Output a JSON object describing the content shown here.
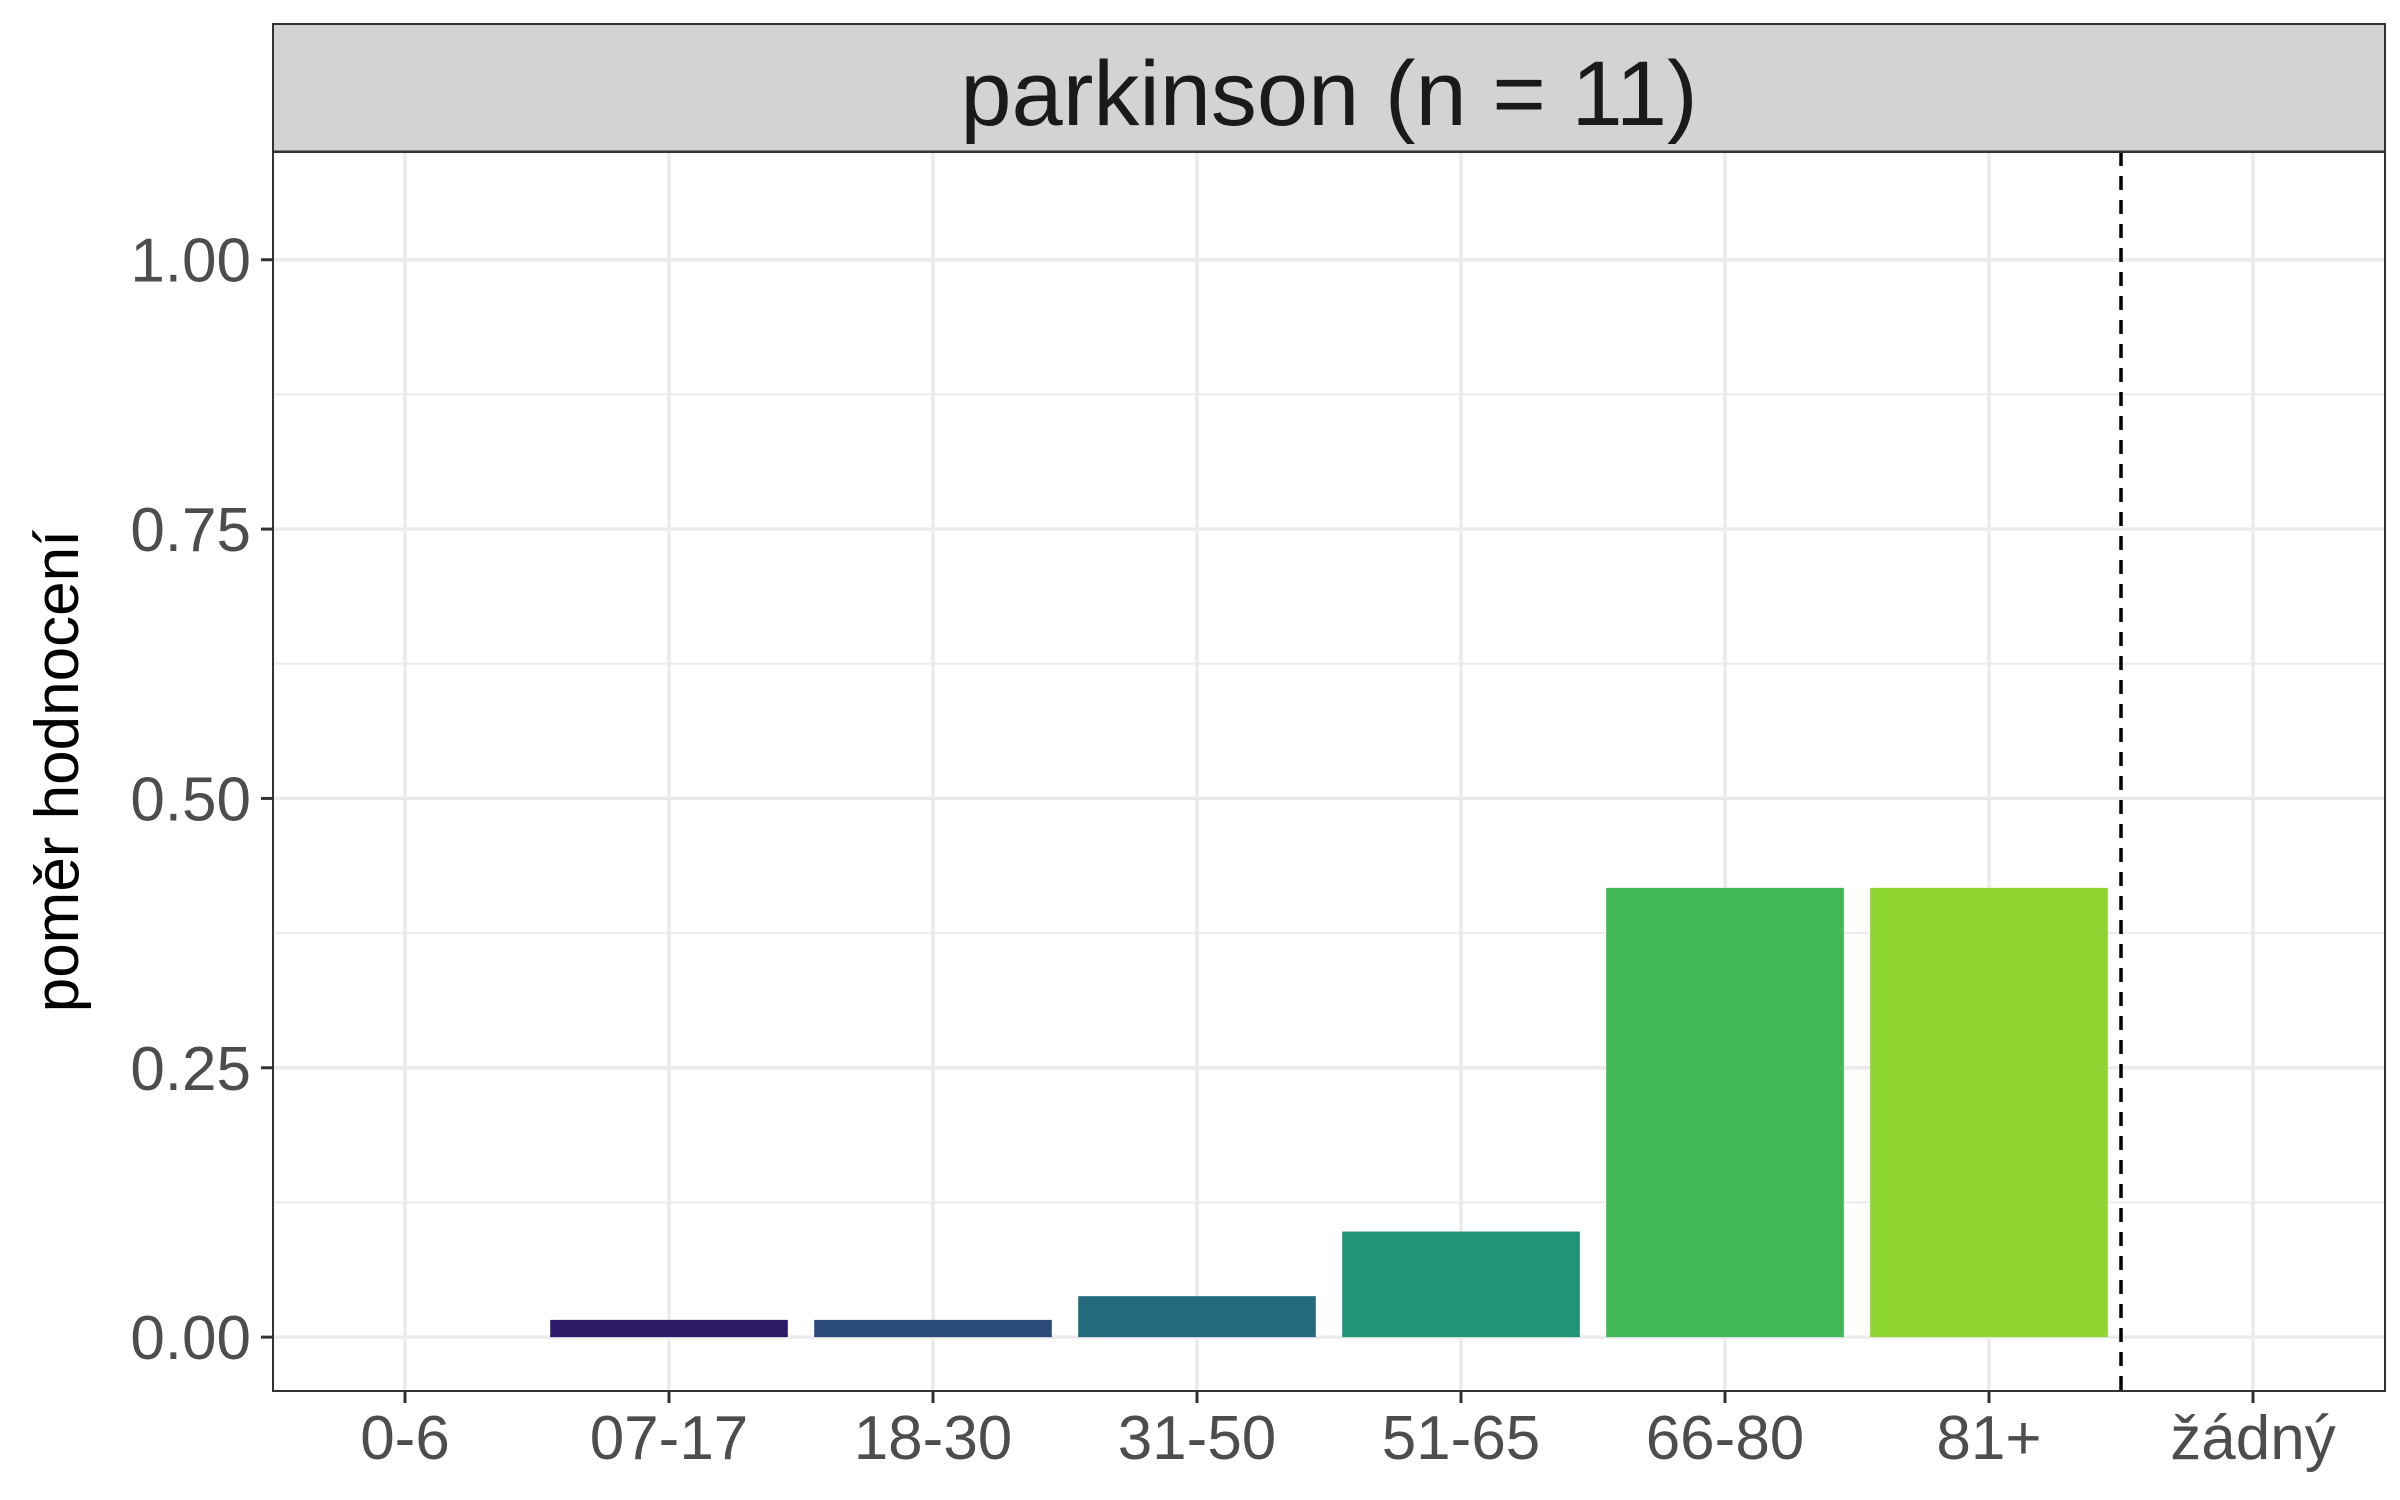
{
  "chart_data": {
    "type": "bar",
    "panel_title": "parkinson (n = 11)",
    "xlabel": "",
    "ylabel": "poměr hodnocení",
    "categories": [
      "0-6",
      "07-17",
      "18-30",
      "31-50",
      "51-65",
      "66-80",
      "81+",
      "žádný"
    ],
    "values": [
      0,
      0.016,
      0.016,
      0.038,
      0.098,
      0.417,
      0.417,
      0
    ],
    "colors": [
      "#440154",
      "#2D1A67",
      "#2A4A7B",
      "#236A7E",
      "#1F9476",
      "#40B858",
      "#8FD531",
      "#FDE725"
    ],
    "ylim": [
      -0.05,
      1.1
    ],
    "yticks": [
      0,
      0.25,
      0.5,
      0.75,
      1.0
    ],
    "ytick_labels": [
      "0.00",
      "0.25",
      "0.50",
      "0.75",
      "1.00"
    ],
    "vline_after_category": "81+",
    "vline_style": "dashed",
    "grid": true,
    "legend": "none"
  }
}
